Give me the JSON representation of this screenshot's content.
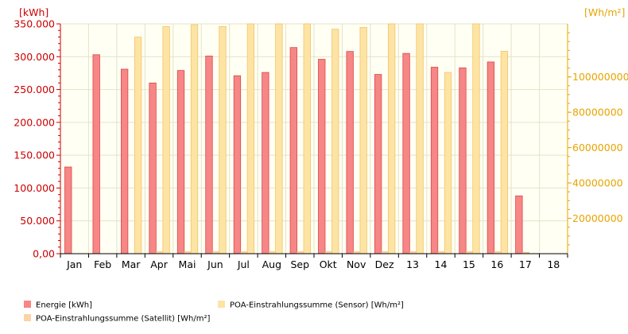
{
  "chart_data": {
    "type": "bar",
    "categories": [
      "Jan",
      "Feb",
      "Mar",
      "Apr",
      "Mai",
      "Jun",
      "Jul",
      "Aug",
      "Sep",
      "Okt",
      "Nov",
      "Dez",
      "13",
      "14",
      "15",
      "16",
      "17",
      "18"
    ],
    "y_left": {
      "unit": "[kWh]",
      "range": [
        0,
        350000
      ],
      "tick_labels": [
        "0,00",
        "50.000",
        "100.000",
        "150.000",
        "200.000",
        "250.000",
        "300.000",
        "350.000"
      ],
      "color": "#cc0000"
    },
    "y_right": {
      "unit": "[Wh/m²]",
      "range": [
        0,
        130000000
      ],
      "tick_labels": [
        "20000000",
        "40000000",
        "60000000",
        "80000000",
        "100000000"
      ],
      "tick_values": [
        20000000,
        40000000,
        60000000,
        80000000,
        100000000
      ],
      "color": "#e8a400"
    },
    "grid": true,
    "series": [
      {
        "name": "Energie [kWh]",
        "axis": "left",
        "color": "#f78686",
        "edge": "#d94848",
        "values": [
          132000,
          303000,
          281000,
          260000,
          279000,
          301000,
          271000,
          276000,
          314000,
          296000,
          308000,
          273000,
          305000,
          284000,
          283000,
          292000,
          88000,
          0
        ]
      },
      {
        "name": "POA-Einstrahlungssumme (Satellit) [Wh/m²]",
        "axis": "right",
        "color": "#fbd3a6",
        "edge": "#f0b070",
        "values": [
          0,
          0,
          0,
          1000000,
          1000000,
          1000000,
          1000000,
          1000000,
          1000000,
          1000000,
          1000000,
          1000000,
          1000000,
          1000000,
          1000000,
          1000000,
          600000,
          0
        ]
      },
      {
        "name": "POA-Einstrahlungssumme (Sensor) [Wh/m²]",
        "axis": "right",
        "color": "#fde4a4",
        "edge": "#f2c46a",
        "values": [
          0,
          0,
          122500000,
          128500000,
          129500000,
          128500000,
          130000000,
          130000000,
          130000000,
          127000000,
          128000000,
          130000000,
          130000000,
          102500000,
          130000000,
          114500000,
          0,
          0
        ]
      }
    ],
    "legend": {
      "placement": "bottom"
    }
  }
}
